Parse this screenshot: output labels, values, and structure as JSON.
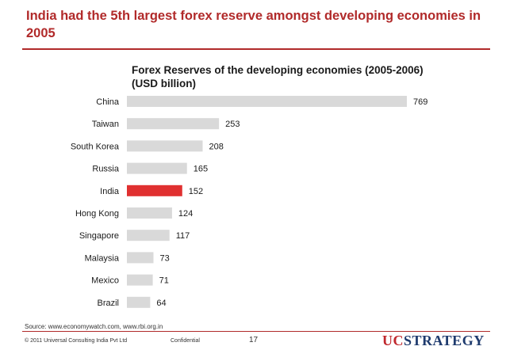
{
  "header": {
    "title": "India had the 5th largest forex reserve amongst developing economies in 2005"
  },
  "chart_data": {
    "type": "bar",
    "orientation": "horizontal",
    "title": "Forex Reserves of the developing economies (2005-2006) (USD billion)",
    "xlabel": "",
    "ylabel": "",
    "categories": [
      "China",
      "Taiwan",
      "South Korea",
      "Russia",
      "India",
      "Hong Kong",
      "Singapore",
      "Malaysia",
      "Mexico",
      "Brazil"
    ],
    "values": [
      769,
      253,
      208,
      165,
      152,
      124,
      117,
      73,
      71,
      64
    ],
    "value_labels": [
      "769",
      "253",
      "208",
      "165",
      "152",
      "124",
      "117",
      "73",
      "71",
      "64"
    ],
    "xlim": [
      0,
      769
    ],
    "grid": false,
    "legend": "none",
    "bar_color": "#d9d9d9",
    "highlight_category": "India",
    "highlight_color": "#e03030"
  },
  "footer": {
    "source": "Source: www.economywatch.com, www.rbi.org.in",
    "copyright": "© 2011 Universal Consulting India Pvt Ltd",
    "confidential": "Confidential",
    "page_number": "17",
    "logo_part1": "UC",
    "logo_part2": "STRATEGY"
  },
  "colors": {
    "accent": "#b12a2a",
    "logo_red": "#c0282d",
    "logo_blue": "#1f3b6e"
  }
}
